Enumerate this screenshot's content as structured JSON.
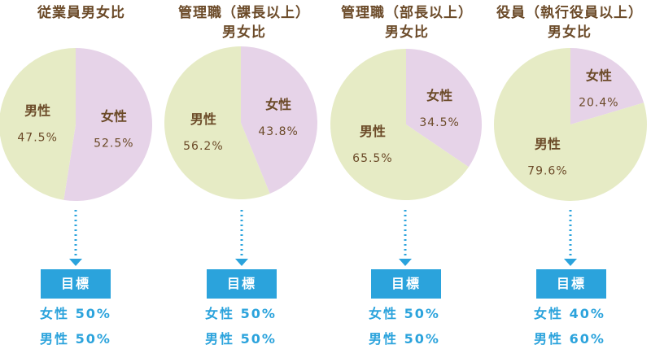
{
  "charts": [
    {
      "title_lines": [
        "従業員男女比"
      ],
      "slices": [
        {
          "label": "男性",
          "pct_text": "47.5%"
        },
        {
          "label": "女性",
          "pct_text": "52.5%"
        }
      ],
      "target_label": "目標",
      "targets": [
        {
          "label": "女性",
          "value": "50%"
        },
        {
          "label": "男性",
          "value": "50%"
        }
      ]
    },
    {
      "title_lines": [
        "管理職（課長以上）",
        "男女比"
      ],
      "slices": [
        {
          "label": "男性",
          "pct_text": "56.2%"
        },
        {
          "label": "女性",
          "pct_text": "43.8%"
        }
      ],
      "target_label": "目標",
      "targets": [
        {
          "label": "女性",
          "value": "50%"
        },
        {
          "label": "男性",
          "value": "50%"
        }
      ]
    },
    {
      "title_lines": [
        "管理職（部長以上）",
        "男女比"
      ],
      "slices": [
        {
          "label": "男性",
          "pct_text": "65.5%"
        },
        {
          "label": "女性",
          "pct_text": "34.5%"
        }
      ],
      "target_label": "目標",
      "targets": [
        {
          "label": "女性",
          "value": "50%"
        },
        {
          "label": "男性",
          "value": "50%"
        }
      ]
    },
    {
      "title_lines": [
        "役員（執行役員以上）",
        "男女比"
      ],
      "slices": [
        {
          "label": "男性",
          "pct_text": "79.6%"
        },
        {
          "label": "女性",
          "pct_text": "20.4%"
        }
      ],
      "target_label": "目標",
      "targets": [
        {
          "label": "女性",
          "value": "40%"
        },
        {
          "label": "男性",
          "value": "60%"
        }
      ]
    }
  ],
  "chart_data": [
    {
      "type": "pie",
      "title": "従業員男女比",
      "labels": [
        "男性",
        "女性"
      ],
      "values": [
        47.5,
        52.5
      ],
      "colors": [
        "#e6ebc5",
        "#e6d3e8"
      ]
    },
    {
      "type": "pie",
      "title": "管理職（課長以上）男女比",
      "labels": [
        "男性",
        "女性"
      ],
      "values": [
        56.2,
        43.8
      ],
      "colors": [
        "#e6ebc5",
        "#e6d3e8"
      ]
    },
    {
      "type": "pie",
      "title": "管理職（部長以上）男女比",
      "labels": [
        "男性",
        "女性"
      ],
      "values": [
        65.5,
        34.5
      ],
      "colors": [
        "#e6ebc5",
        "#e6d3e8"
      ]
    },
    {
      "type": "pie",
      "title": "役員（執行役員以上）男女比",
      "labels": [
        "男性",
        "女性"
      ],
      "values": [
        79.6,
        20.4
      ],
      "colors": [
        "#e6ebc5",
        "#e6d3e8"
      ]
    }
  ],
  "colors": {
    "male": "#e6ebc5",
    "female": "#e6d3e8",
    "label_text": "#6b4a28",
    "accent": "#2ba3dc"
  }
}
